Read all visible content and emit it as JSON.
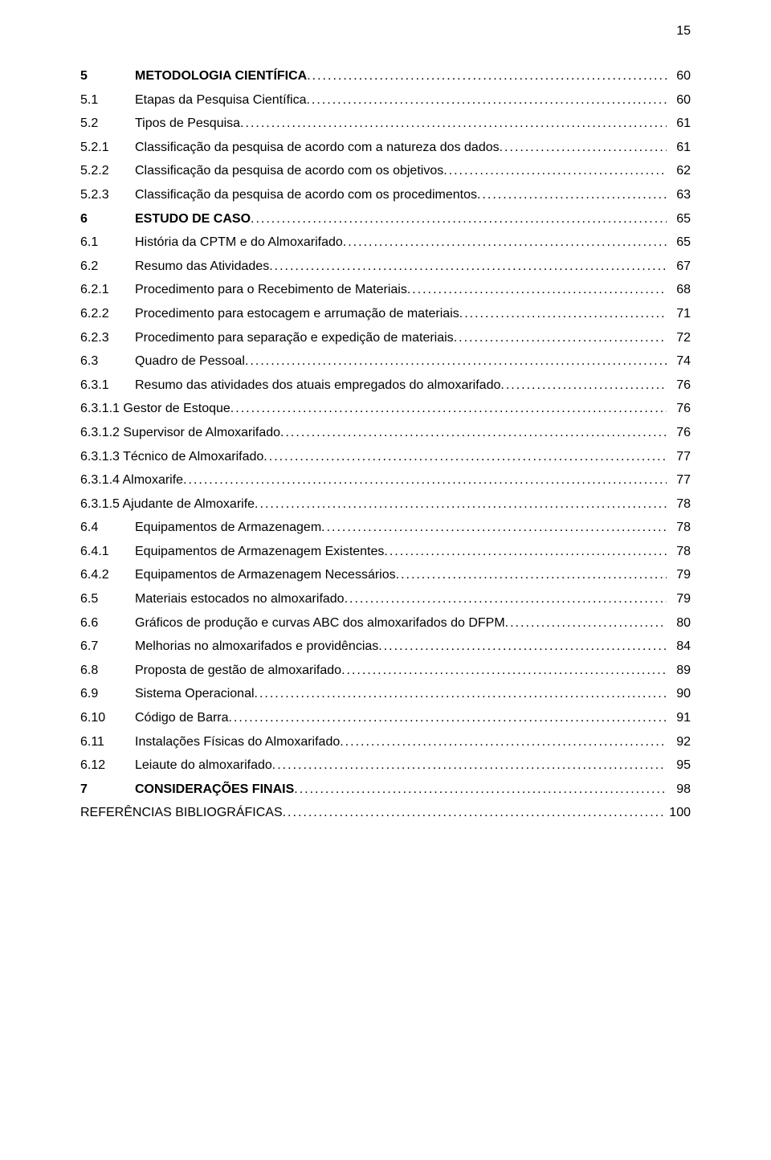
{
  "page_number": "15",
  "typography": {
    "font_family": "Arial",
    "font_size_pt": 12,
    "line_height": 1.85,
    "text_color": "#000000",
    "background_color": "#ffffff"
  },
  "toc": [
    {
      "num": "5",
      "label": "METODOLOGIA CIENTÍFICA",
      "page": "60",
      "bold": true,
      "level": 1
    },
    {
      "num": "5.1",
      "label": "Etapas da Pesquisa Científica",
      "page": "60",
      "bold": false,
      "level": 1
    },
    {
      "num": "5.2",
      "label": "Tipos de Pesquisa",
      "page": "61",
      "bold": false,
      "level": 1
    },
    {
      "num": "5.2.1",
      "label": "Classificação da pesquisa de acordo com a natureza dos dados",
      "page": "61",
      "bold": false,
      "level": 1
    },
    {
      "num": "5.2.2",
      "label": "Classificação da pesquisa de acordo com os objetivos",
      "page": "62",
      "bold": false,
      "level": 1
    },
    {
      "num": "5.2.3",
      "label": "Classificação da pesquisa de acordo com os procedimentos",
      "page": "63",
      "bold": false,
      "level": 1
    },
    {
      "num": "6",
      "label": "ESTUDO DE CASO",
      "page": "65",
      "bold": true,
      "level": 1
    },
    {
      "num": "6.1",
      "label": "História da CPTM e do Almoxarifado",
      "page": "65",
      "bold": false,
      "level": 1
    },
    {
      "num": "6.2",
      "label": "Resumo das Atividades",
      "page": "67",
      "bold": false,
      "level": 1
    },
    {
      "num": "6.2.1",
      "label": "Procedimento para o Recebimento de Materiais",
      "page": "68",
      "bold": false,
      "level": 1
    },
    {
      "num": "6.2.2",
      "label": "Procedimento para estocagem e arrumação de materiais",
      "page": "71",
      "bold": false,
      "level": 1
    },
    {
      "num": "6.2.3",
      "label": "Procedimento para separação e expedição de materiais",
      "page": "72",
      "bold": false,
      "level": 1
    },
    {
      "num": "6.3",
      "label": "Quadro de Pessoal",
      "page": "74",
      "bold": false,
      "level": 1
    },
    {
      "num": "6.3.1",
      "label": "Resumo das atividades dos atuais empregados do almoxarifado",
      "page": "76",
      "bold": false,
      "level": 1
    },
    {
      "num": "",
      "label": "6.3.1.1 Gestor de Estoque",
      "page": "76",
      "bold": false,
      "level": 0
    },
    {
      "num": "",
      "label": "6.3.1.2 Supervisor de Almoxarifado",
      "page": "76",
      "bold": false,
      "level": 0
    },
    {
      "num": "",
      "label": "6.3.1.3 Técnico de Almoxarifado",
      "page": "77",
      "bold": false,
      "level": 0
    },
    {
      "num": "",
      "label": "6.3.1.4 Almoxarife",
      "page": "77",
      "bold": false,
      "level": 0
    },
    {
      "num": "",
      "label": "6.3.1.5 Ajudante de Almoxarife",
      "page": "78",
      "bold": false,
      "level": 0
    },
    {
      "num": "6.4",
      "label": "Equipamentos de Armazenagem",
      "page": "78",
      "bold": false,
      "level": 1
    },
    {
      "num": "6.4.1",
      "label": "Equipamentos de Armazenagem Existentes",
      "page": "78",
      "bold": false,
      "level": 1
    },
    {
      "num": "6.4.2",
      "label": "Equipamentos de Armazenagem Necessários",
      "page": "79",
      "bold": false,
      "level": 1
    },
    {
      "num": "6.5",
      "label": "Materiais estocados no almoxarifado",
      "page": "79",
      "bold": false,
      "level": 1
    },
    {
      "num": "6.6",
      "label": "Gráficos de produção e curvas ABC dos almoxarifados do DFPM",
      "page": "80",
      "bold": false,
      "level": 1
    },
    {
      "num": "6.7",
      "label": "Melhorias no almoxarifados e providências",
      "page": "84",
      "bold": false,
      "level": 1
    },
    {
      "num": "6.8",
      "label": "Proposta de gestão de almoxarifado",
      "page": "89",
      "bold": false,
      "level": 1
    },
    {
      "num": "6.9",
      "label": "Sistema Operacional",
      "page": "90",
      "bold": false,
      "level": 1
    },
    {
      "num": "6.10",
      "label": "Código de Barra",
      "page": "91",
      "bold": false,
      "level": 1
    },
    {
      "num": "6.11",
      "label": "Instalações Físicas do Almoxarifado",
      "page": "92",
      "bold": false,
      "level": 1
    },
    {
      "num": "6.12",
      "label": "Leiaute do almoxarifado",
      "page": "95",
      "bold": false,
      "level": 1
    },
    {
      "num": "7",
      "label": "CONSIDERAÇÕES FINAIS",
      "page": "98",
      "bold": true,
      "level": 1
    },
    {
      "num": "",
      "label": "REFERÊNCIAS BIBLIOGRÁFICAS",
      "page": "100",
      "bold": false,
      "level": 0
    }
  ]
}
